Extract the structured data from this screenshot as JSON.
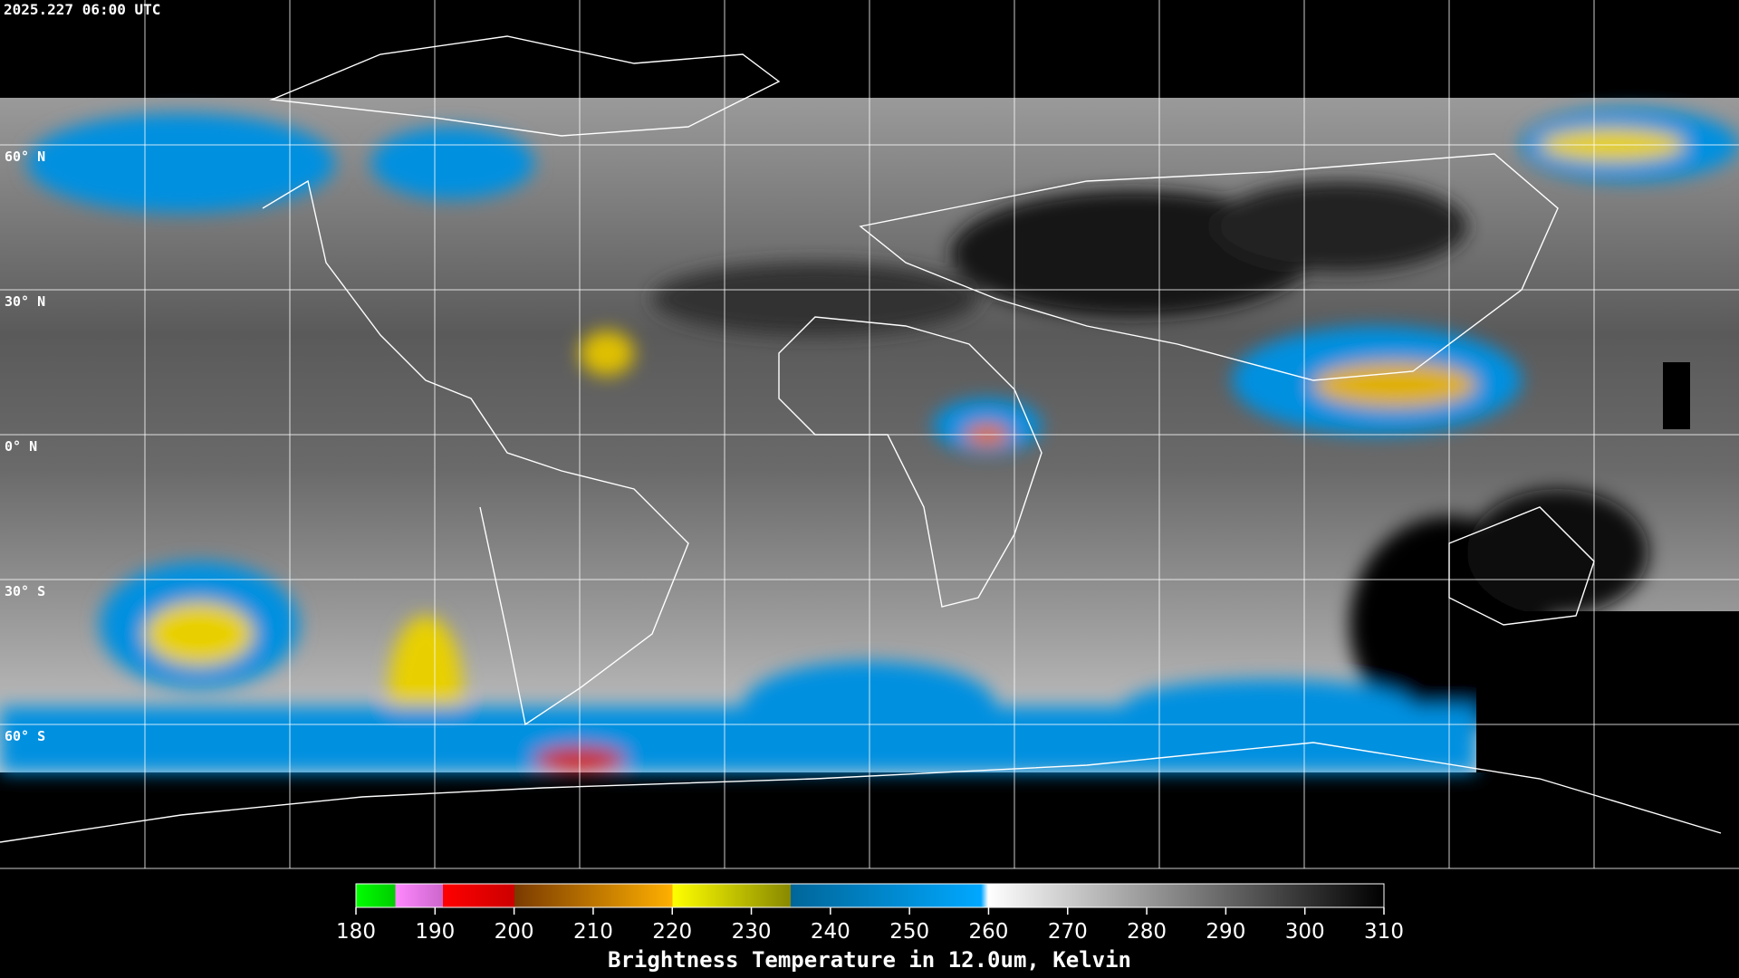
{
  "header": {
    "timestamp": "2025.227 06:00 UTC"
  },
  "map": {
    "latitude_labels": [
      "60° N",
      "30° N",
      "0° N",
      "30° S",
      "60° S"
    ]
  },
  "colorbar": {
    "range": [
      180,
      310
    ],
    "ticks": [
      180,
      190,
      200,
      210,
      220,
      230,
      240,
      250,
      260,
      270,
      280,
      290,
      300,
      310
    ],
    "title": "Brightness Temperature in 12.0um, Kelvin"
  }
}
